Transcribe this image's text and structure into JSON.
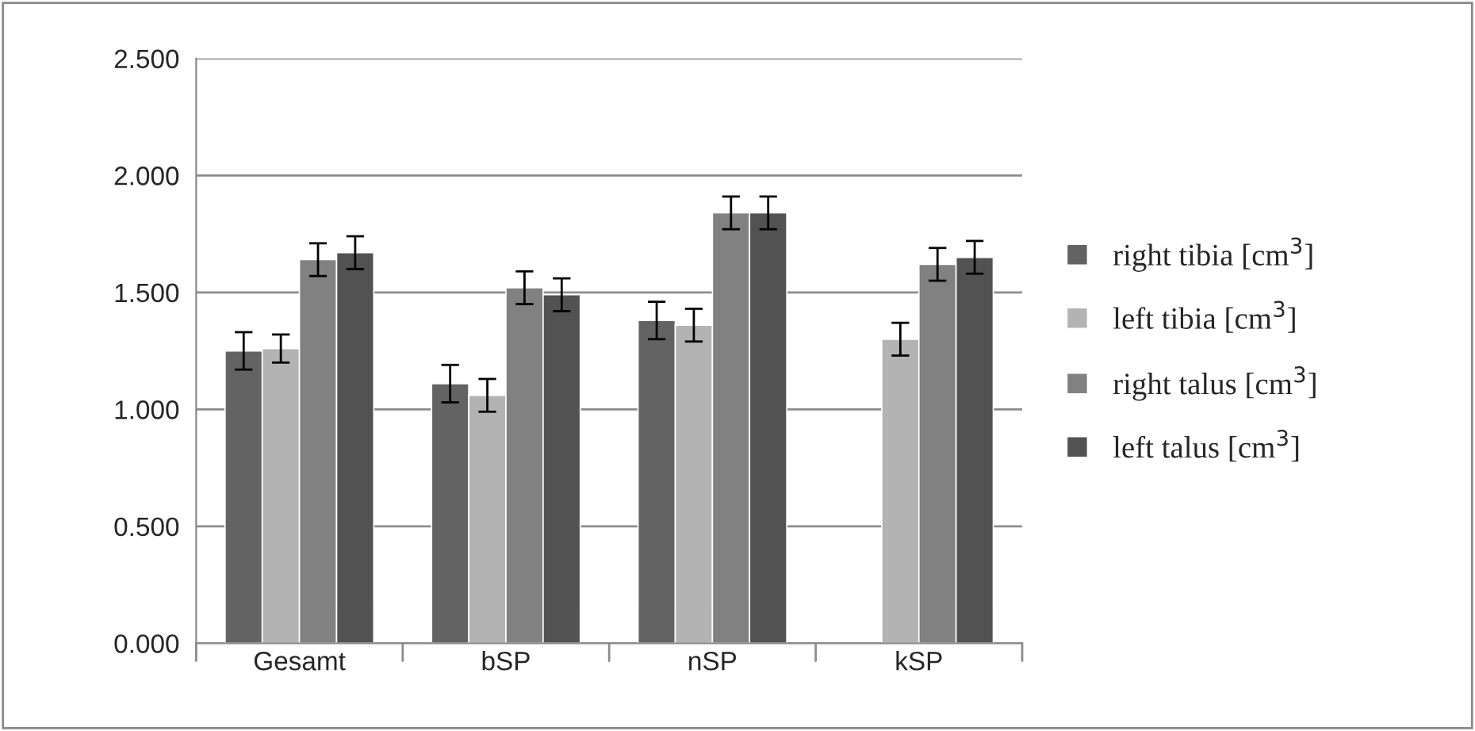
{
  "chart_data": {
    "type": "bar",
    "categories": [
      "Gesamt",
      "bSP",
      "nSP",
      "kSP"
    ],
    "series": [
      {
        "name": "right tibia [cm$^{3}$]",
        "color": "#636363",
        "values": [
          1.25,
          1.11,
          1.38,
          null
        ],
        "errors": [
          0.08,
          0.08,
          0.08,
          null
        ]
      },
      {
        "name": "left tibia [cm$^{3}$]",
        "color": "#b3b3b3",
        "values": [
          1.26,
          1.06,
          1.36,
          1.3
        ],
        "errors": [
          0.06,
          0.07,
          0.07,
          0.07
        ]
      },
      {
        "name": "right talus [cm$^{3}$]",
        "color": "#818181",
        "values": [
          1.64,
          1.52,
          1.84,
          1.62
        ],
        "errors": [
          0.07,
          0.07,
          0.07,
          0.07
        ]
      },
      {
        "name": "left talus [cm$^{3}$]",
        "color": "#525252",
        "values": [
          1.67,
          1.49,
          1.84,
          1.65
        ],
        "errors": [
          0.07,
          0.07,
          0.07,
          0.07
        ]
      }
    ],
    "ylim": [
      0,
      2.5
    ],
    "yticks": [
      {
        "value": 0,
        "label": "0.000"
      },
      {
        "value": 0.5,
        "label": "0.500"
      },
      {
        "value": 1,
        "label": "1.000"
      },
      {
        "value": 1.5,
        "label": "1.500"
      },
      {
        "value": 2,
        "label": "2.000"
      },
      {
        "value": 2.5,
        "label": "2.500"
      }
    ],
    "grid": "y",
    "legend": "right"
  }
}
